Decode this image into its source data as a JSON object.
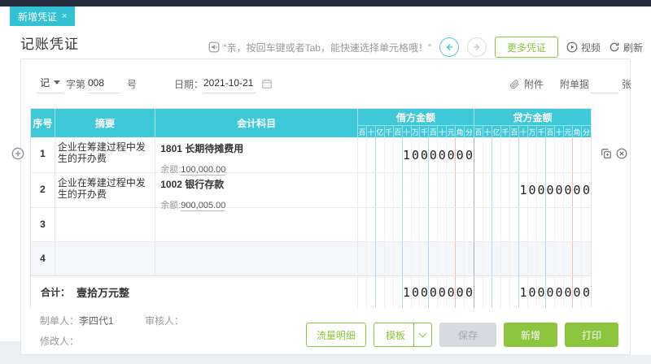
{
  "tab": {
    "label": "新增凭证",
    "close": "×"
  },
  "page": {
    "title": "记账凭证"
  },
  "toolbar": {
    "tip": "“亲，按回车键或者Tab，能快速选择单元格哦！”",
    "more_vouchers": "更多凭证",
    "video": "视频",
    "refresh": "刷新"
  },
  "form": {
    "word": "记",
    "word_label": "字第",
    "number": "008",
    "number_suffix": "号",
    "date_label": "日期：",
    "date": "2021-10-21",
    "attachment_label": "附件",
    "attachment_doc_label": "附单据",
    "attachment_unit": "张"
  },
  "table": {
    "headers": {
      "index": "序号",
      "summary": "摘要",
      "account": "会计科目",
      "debit": "借方金额",
      "credit": "贷方金额"
    },
    "digit_labels": [
      "百",
      "十",
      "亿",
      "千",
      "百",
      "十",
      "万",
      "千",
      "百",
      "十",
      "元",
      "角",
      "分"
    ],
    "rows": [
      {
        "index": "1",
        "summary": "企业在筹建过程中发生的开办费",
        "account": "1801 长期待摊费用",
        "balance_label": "余额:",
        "balance": "100,000.00",
        "debit": "10000000",
        "credit": ""
      },
      {
        "index": "2",
        "summary": "企业在筹建过程中发生的开办费",
        "account": "1002 银行存款",
        "balance_label": "余额:",
        "balance": "900,005.00",
        "debit": "",
        "credit": "10000000"
      },
      {
        "index": "3",
        "summary": "",
        "account": "",
        "debit": "",
        "credit": ""
      },
      {
        "index": "4",
        "summary": "",
        "account": "",
        "debit": "",
        "credit": ""
      }
    ],
    "total": {
      "label": "合计：",
      "amount_words": "壹拾万元整",
      "debit": "10000000",
      "credit": "10000000"
    }
  },
  "footer": {
    "creator_label": "制单人：",
    "creator": "李四代1",
    "auditor_label": "审核人：",
    "auditor": "",
    "modifier_label": "修改人：",
    "modifier": "",
    "buttons": {
      "flow_detail": "流量明细",
      "template": "模板",
      "save": "保存",
      "add": "新增",
      "print": "打印"
    }
  },
  "colors": {
    "teal_tab": "#32c2d3",
    "teal_header": "#3ec8d8",
    "green": "#8cc63f",
    "dark_topbar": "#262d3d",
    "grid_blue": "#bcd7f1",
    "grid_red": "#f5c0b5",
    "disabled_gray": "#d7dade",
    "page_bottom": "#edf0f3"
  }
}
